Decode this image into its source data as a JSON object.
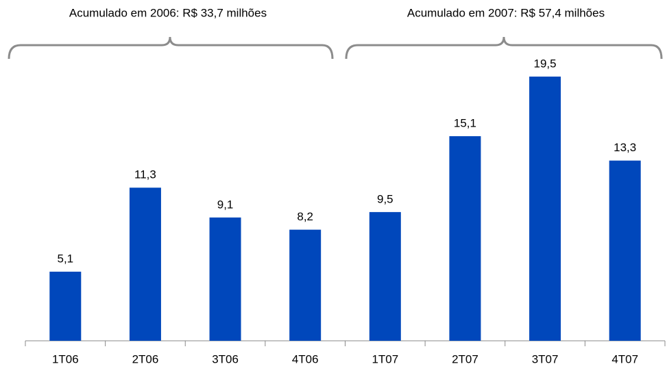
{
  "chart_data": {
    "type": "bar",
    "annotations": [
      "Acumulado em 2006: R$ 33,7 milhões",
      "Acumulado em 2007: R$ 57,4 milhões"
    ],
    "categories": [
      "1T06",
      "2T06",
      "3T06",
      "4T06",
      "1T07",
      "2T07",
      "3T07",
      "4T07"
    ],
    "values": [
      5.1,
      11.3,
      9.1,
      8.2,
      9.5,
      15.1,
      19.5,
      13.3
    ],
    "value_labels": [
      "5,1",
      "11,3",
      "9,1",
      "8,2",
      "9,5",
      "15,1",
      "19,5",
      "13,3"
    ],
    "color": "#0047bb"
  }
}
